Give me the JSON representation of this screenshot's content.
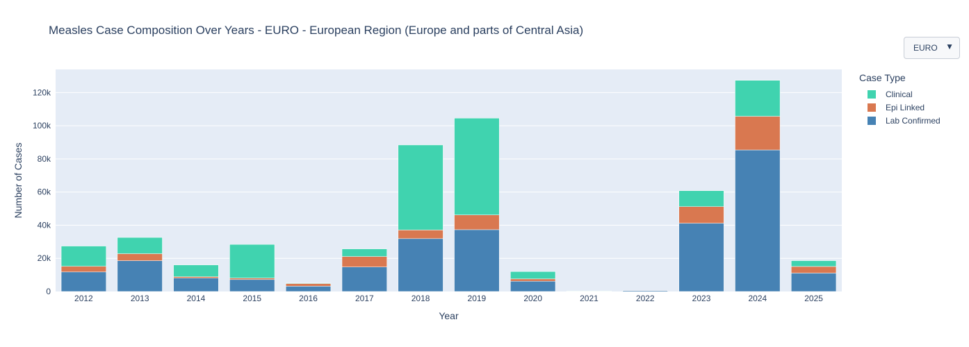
{
  "title": "Measles Case Composition Over Years - EURO - European Region (Europe and parts of Central Asia)",
  "dropdown": {
    "selected": "EURO"
  },
  "chart_data": {
    "type": "bar",
    "stacked": true,
    "xlabel": "Year",
    "ylabel": "Number of Cases",
    "ylim": [
      0,
      134000
    ],
    "yticks": [
      0,
      20000,
      40000,
      60000,
      80000,
      100000,
      120000
    ],
    "ytick_labels": [
      "0",
      "20k",
      "40k",
      "60k",
      "80k",
      "100k",
      "120k"
    ],
    "grid": true,
    "legend_title": "Case Type",
    "legend_position": "top-right",
    "categories": [
      "2012",
      "2013",
      "2014",
      "2015",
      "2016",
      "2017",
      "2018",
      "2019",
      "2020",
      "2021",
      "2022",
      "2023",
      "2024",
      "2025"
    ],
    "series": [
      {
        "name": "Lab Confirmed",
        "color": "#4682b4",
        "values": [
          11800,
          18600,
          8100,
          7200,
          3200,
          14800,
          31900,
          37300,
          6200,
          150,
          600,
          41200,
          85400,
          11100
        ]
      },
      {
        "name": "Epi Linked",
        "color": "#d97850",
        "values": [
          3400,
          4200,
          800,
          900,
          1600,
          6300,
          5200,
          8900,
          1400,
          30,
          100,
          10000,
          20300,
          4000
        ]
      },
      {
        "name": "Clinical",
        "color": "#40d3af",
        "values": [
          12200,
          9800,
          7100,
          20300,
          300,
          4600,
          51300,
          58400,
          4400,
          60,
          50,
          9600,
          21700,
          3500
        ]
      }
    ]
  }
}
